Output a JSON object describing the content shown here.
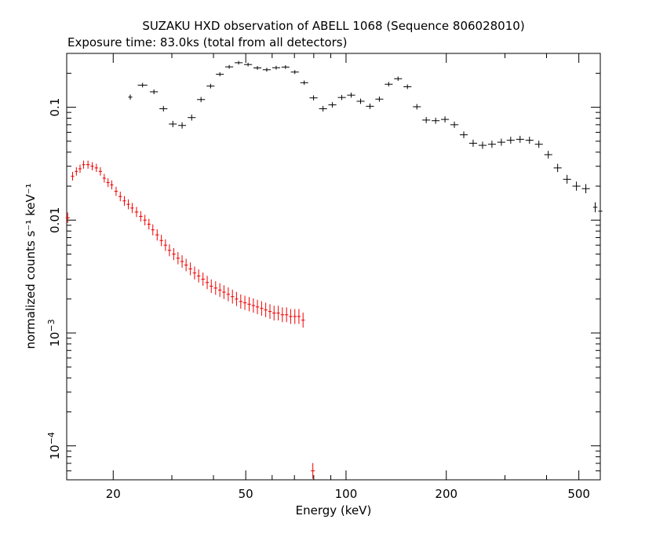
{
  "chart_data": {
    "type": "scatter",
    "title": "SUZAKU HXD observation of ABELL 1068 (Sequence 806028010)",
    "subtitle": "Exposure time: 83.0ks (total from all detectors)",
    "xlabel": "Energy (keV)",
    "ylabel": "normalized counts s⁻¹ keV⁻¹",
    "xscale": "log",
    "yscale": "log",
    "xlim": [
      14.5,
      580
    ],
    "ylim": [
      5e-05,
      0.3
    ],
    "grid": false,
    "x_ticks": [
      {
        "value": 20,
        "label": "20"
      },
      {
        "value": 50,
        "label": "50"
      },
      {
        "value": 100,
        "label": "100"
      },
      {
        "value": 200,
        "label": "200"
      },
      {
        "value": 500,
        "label": "500"
      }
    ],
    "y_ticks": [
      {
        "value": 0.0001,
        "label": "10",
        "exp": "−4"
      },
      {
        "value": 0.001,
        "label": "10",
        "exp": "−3"
      },
      {
        "value": 0.01,
        "label": "0.01",
        "exp": ""
      },
      {
        "value": 0.1,
        "label": "0.1",
        "exp": ""
      }
    ],
    "series": [
      {
        "color": "#000000",
        "points": [
          [
            22.5,
            0.123
          ],
          [
            24.5,
            0.157
          ],
          [
            26.5,
            0.137
          ],
          [
            28.3,
            0.097
          ],
          [
            30.2,
            0.071
          ],
          [
            32.2,
            0.069
          ],
          [
            34.4,
            0.081
          ],
          [
            36.7,
            0.117
          ],
          [
            39.2,
            0.154
          ],
          [
            41.8,
            0.196
          ],
          [
            44.6,
            0.228
          ],
          [
            47.6,
            0.248
          ],
          [
            50.8,
            0.239
          ],
          [
            54.2,
            0.223
          ],
          [
            57.8,
            0.215
          ],
          [
            61.7,
            0.224
          ],
          [
            65.8,
            0.227
          ],
          [
            70.2,
            0.205
          ],
          [
            74.9,
            0.165
          ],
          [
            79.9,
            0.121
          ],
          [
            85.3,
            0.097
          ],
          [
            91.0,
            0.105
          ],
          [
            97.1,
            0.122
          ],
          [
            103.6,
            0.128
          ],
          [
            110.6,
            0.113
          ],
          [
            118.0,
            0.102
          ],
          [
            125.9,
            0.118
          ],
          [
            134.3,
            0.16
          ],
          [
            143.3,
            0.179
          ],
          [
            152.9,
            0.152
          ],
          [
            163.2,
            0.101
          ],
          [
            174.1,
            0.077
          ],
          [
            185.8,
            0.076
          ],
          [
            198.2,
            0.078
          ],
          [
            211.5,
            0.07
          ],
          [
            225.7,
            0.057
          ],
          [
            240.8,
            0.048
          ],
          [
            257.0,
            0.046
          ],
          [
            274.2,
            0.047
          ],
          [
            292.6,
            0.049
          ],
          [
            312.2,
            0.051
          ],
          [
            333.1,
            0.052
          ],
          [
            355.5,
            0.051
          ],
          [
            379.3,
            0.047
          ],
          [
            404.8,
            0.038
          ],
          [
            431.9,
            0.029
          ],
          [
            460.9,
            0.023
          ],
          [
            491.8,
            0.02
          ],
          [
            524.8,
            0.019
          ],
          [
            560.0,
            0.013
          ],
          [
            580.0,
            0.012
          ]
        ]
      },
      {
        "color": "#ee0000",
        "points": [
          [
            14.6,
            0.0105
          ],
          [
            15.1,
            0.0245
          ],
          [
            15.5,
            0.027
          ],
          [
            15.9,
            0.0285
          ],
          [
            16.3,
            0.031
          ],
          [
            16.8,
            0.031
          ],
          [
            17.3,
            0.03
          ],
          [
            17.8,
            0.029
          ],
          [
            18.3,
            0.027
          ],
          [
            18.8,
            0.0235
          ],
          [
            19.3,
            0.0215
          ],
          [
            19.8,
            0.0205
          ],
          [
            20.4,
            0.018
          ],
          [
            21.0,
            0.0162
          ],
          [
            21.6,
            0.0148
          ],
          [
            22.2,
            0.0138
          ],
          [
            22.8,
            0.0128
          ],
          [
            23.5,
            0.0118
          ],
          [
            24.2,
            0.0108
          ],
          [
            24.9,
            0.01
          ],
          [
            25.6,
            0.0092
          ],
          [
            26.3,
            0.0082
          ],
          [
            27.1,
            0.0074
          ],
          [
            27.9,
            0.0066
          ],
          [
            28.7,
            0.006
          ],
          [
            29.5,
            0.0054
          ],
          [
            30.4,
            0.005
          ],
          [
            31.3,
            0.0046
          ],
          [
            32.2,
            0.0043
          ],
          [
            33.1,
            0.004
          ],
          [
            34.1,
            0.0037
          ],
          [
            35.1,
            0.0034
          ],
          [
            36.1,
            0.0032
          ],
          [
            37.2,
            0.003
          ],
          [
            38.3,
            0.0028
          ],
          [
            39.4,
            0.0026
          ],
          [
            40.6,
            0.0025
          ],
          [
            41.8,
            0.0024
          ],
          [
            43.0,
            0.0023
          ],
          [
            44.3,
            0.0022
          ],
          [
            45.6,
            0.0021
          ],
          [
            46.9,
            0.002
          ],
          [
            48.3,
            0.0019
          ],
          [
            49.7,
            0.00185
          ],
          [
            51.2,
            0.0018
          ],
          [
            52.7,
            0.00175
          ],
          [
            54.2,
            0.0017
          ],
          [
            55.8,
            0.00165
          ],
          [
            57.4,
            0.0016
          ],
          [
            59.1,
            0.00155
          ],
          [
            60.8,
            0.0015
          ],
          [
            62.6,
            0.0015
          ],
          [
            64.4,
            0.00145
          ],
          [
            66.3,
            0.00145
          ],
          [
            68.2,
            0.0014
          ],
          [
            70.2,
            0.0014
          ],
          [
            72.2,
            0.0014
          ],
          [
            74.3,
            0.0013
          ],
          [
            79.5,
            6e-05
          ]
        ]
      }
    ]
  }
}
